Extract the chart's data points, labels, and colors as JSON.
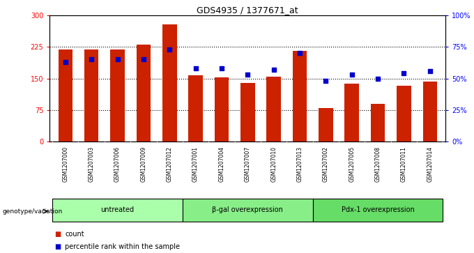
{
  "title": "GDS4935 / 1377671_at",
  "categories": [
    "GSM1207000",
    "GSM1207003",
    "GSM1207006",
    "GSM1207009",
    "GSM1207012",
    "GSM1207001",
    "GSM1207004",
    "GSM1207007",
    "GSM1207010",
    "GSM1207013",
    "GSM1207002",
    "GSM1207005",
    "GSM1207008",
    "GSM1207011",
    "GSM1207014"
  ],
  "bar_values": [
    218,
    218,
    218,
    230,
    278,
    158,
    153,
    140,
    155,
    215,
    80,
    138,
    90,
    133,
    143
  ],
  "dot_values_pct": [
    63,
    65,
    65,
    65,
    73,
    58,
    58,
    53,
    57,
    70,
    48,
    53,
    50,
    54,
    56
  ],
  "groups": [
    {
      "label": "untreated",
      "start": 0,
      "end": 5,
      "color": "#aaffaa"
    },
    {
      "label": "β-gal overexpression",
      "start": 5,
      "end": 10,
      "color": "#88ee88"
    },
    {
      "label": "Pdx-1 overexpression",
      "start": 10,
      "end": 15,
      "color": "#66dd66"
    }
  ],
  "bar_color": "#cc2200",
  "dot_color": "#0000cc",
  "ylim_left": [
    0,
    300
  ],
  "ylim_right": [
    0,
    100
  ],
  "yticks_left": [
    0,
    75,
    150,
    225,
    300
  ],
  "yticks_right": [
    0,
    25,
    50,
    75,
    100
  ],
  "ytick_labels_right": [
    "0%",
    "25%",
    "50%",
    "75%",
    "100%"
  ],
  "grid_lines": [
    75,
    150,
    225
  ],
  "bar_width": 0.55,
  "background_color": "#ffffff",
  "xlabel_area_color": "#d0d0d0",
  "legend_count_label": "count",
  "legend_pct_label": "percentile rank within the sample",
  "genotype_label": "genotype/variation"
}
